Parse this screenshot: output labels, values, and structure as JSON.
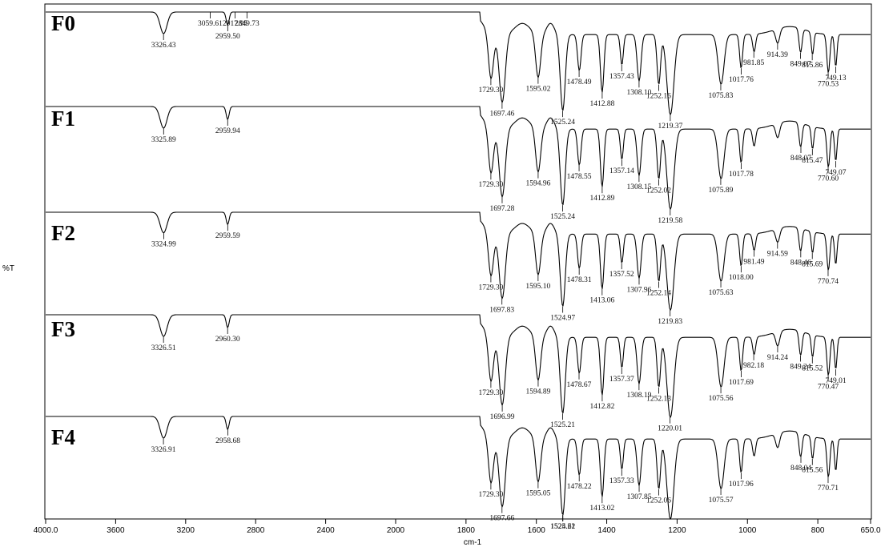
{
  "chart_data": {
    "type": "line",
    "title": "",
    "xlabel": "cm-1",
    "ylabel": "%T",
    "xlim": [
      4000.0,
      650.0
    ],
    "x_ticks": [
      4000.0,
      3600,
      3200,
      2800,
      2400,
      2000,
      1800,
      1600,
      1400,
      1200,
      1000,
      800,
      650.0
    ],
    "x_tick_labels": [
      "4000.0",
      "3600",
      "3200",
      "2800",
      "2400",
      "2000",
      "1800",
      "1600",
      "1400",
      "1200",
      "1000",
      "800",
      "650.0"
    ],
    "grid": false,
    "legend": "none",
    "series": [
      {
        "name": "F0",
        "peaks": [
          {
            "wn": 3326.43,
            "label": "3326.43"
          },
          {
            "wn": 3059.61,
            "label": "3059.61"
          },
          {
            "wn": 2959.5,
            "label": "2959.50"
          },
          {
            "wn": 2917.95,
            "label": "2917.95"
          },
          {
            "wn": 2849.73,
            "label": "2849.73"
          },
          {
            "wn": 1729.3,
            "label": "1729.30"
          },
          {
            "wn": 1697.46,
            "label": "1697.46"
          },
          {
            "wn": 1595.02,
            "label": "1595.02"
          },
          {
            "wn": 1525.24,
            "label": "1525.24"
          },
          {
            "wn": 1478.49,
            "label": "1478.49"
          },
          {
            "wn": 1412.88,
            "label": "1412.88"
          },
          {
            "wn": 1357.43,
            "label": "1357.43"
          },
          {
            "wn": 1308.1,
            "label": "1308.10"
          },
          {
            "wn": 1252.16,
            "label": "1252.16"
          },
          {
            "wn": 1219.37,
            "label": "1219.37"
          },
          {
            "wn": 1075.83,
            "label": "1075.83"
          },
          {
            "wn": 1017.76,
            "label": "1017.76"
          },
          {
            "wn": 981.85,
            "label": "981.85"
          },
          {
            "wn": 914.39,
            "label": "914.39"
          },
          {
            "wn": 849.07,
            "label": "849.07"
          },
          {
            "wn": 815.86,
            "label": "815.86"
          },
          {
            "wn": 770.53,
            "label": "770.53"
          },
          {
            "wn": 749.13,
            "label": "749.13"
          }
        ]
      },
      {
        "name": "F1",
        "peaks": [
          {
            "wn": 3325.89,
            "label": "3325.89"
          },
          {
            "wn": 2959.94,
            "label": "2959.94"
          },
          {
            "wn": 1729.3,
            "label": "1729.30"
          },
          {
            "wn": 1697.28,
            "label": "1697.28"
          },
          {
            "wn": 1594.96,
            "label": "1594.96"
          },
          {
            "wn": 1525.24,
            "label": "1525.24"
          },
          {
            "wn": 1478.55,
            "label": "1478.55"
          },
          {
            "wn": 1412.89,
            "label": "1412.89"
          },
          {
            "wn": 1357.14,
            "label": "1357.14"
          },
          {
            "wn": 1308.15,
            "label": "1308.15"
          },
          {
            "wn": 1252.02,
            "label": "1252.02"
          },
          {
            "wn": 1219.58,
            "label": "1219.58"
          },
          {
            "wn": 1075.89,
            "label": "1075.89"
          },
          {
            "wn": 1017.78,
            "label": "1017.78"
          },
          {
            "wn": 848.07,
            "label": "848.07"
          },
          {
            "wn": 815.47,
            "label": "815.47"
          },
          {
            "wn": 770.6,
            "label": "770.60"
          },
          {
            "wn": 749.07,
            "label": "749.07"
          }
        ]
      },
      {
        "name": "F2",
        "peaks": [
          {
            "wn": 3324.99,
            "label": "3324.99"
          },
          {
            "wn": 2959.59,
            "label": "2959.59"
          },
          {
            "wn": 1729.3,
            "label": "1729.30"
          },
          {
            "wn": 1697.83,
            "label": "1697.83"
          },
          {
            "wn": 1595.1,
            "label": "1595.10"
          },
          {
            "wn": 1524.97,
            "label": "1524.97"
          },
          {
            "wn": 1478.31,
            "label": "1478.31"
          },
          {
            "wn": 1413.06,
            "label": "1413.06"
          },
          {
            "wn": 1357.52,
            "label": "1357.52"
          },
          {
            "wn": 1307.96,
            "label": "1307.96"
          },
          {
            "wn": 1252.14,
            "label": "1252.14"
          },
          {
            "wn": 1219.83,
            "label": "1219.83"
          },
          {
            "wn": 1075.63,
            "label": "1075.63"
          },
          {
            "wn": 1018.0,
            "label": "1018.00"
          },
          {
            "wn": 981.49,
            "label": "981.49"
          },
          {
            "wn": 914.59,
            "label": "914.59"
          },
          {
            "wn": 848.46,
            "label": "848.46"
          },
          {
            "wn": 815.69,
            "label": "815.69"
          },
          {
            "wn": 770.74,
            "label": "770.74"
          }
        ]
      },
      {
        "name": "F3",
        "peaks": [
          {
            "wn": 3326.51,
            "label": "3326.51"
          },
          {
            "wn": 2960.3,
            "label": "2960.30"
          },
          {
            "wn": 1729.3,
            "label": "1729.30"
          },
          {
            "wn": 1696.99,
            "label": "1696.99"
          },
          {
            "wn": 1594.89,
            "label": "1594.89"
          },
          {
            "wn": 1525.21,
            "label": "1525.21"
          },
          {
            "wn": 1478.67,
            "label": "1478.67"
          },
          {
            "wn": 1412.82,
            "label": "1412.82"
          },
          {
            "wn": 1357.37,
            "label": "1357.37"
          },
          {
            "wn": 1308.19,
            "label": "1308.19"
          },
          {
            "wn": 1252.13,
            "label": "1252.13"
          },
          {
            "wn": 1220.01,
            "label": "1220.01"
          },
          {
            "wn": 1075.56,
            "label": "1075.56"
          },
          {
            "wn": 1017.69,
            "label": "1017.69"
          },
          {
            "wn": 982.18,
            "label": "982.18"
          },
          {
            "wn": 914.24,
            "label": "914.24"
          },
          {
            "wn": 849.24,
            "label": "849.24"
          },
          {
            "wn": 815.52,
            "label": "815.52"
          },
          {
            "wn": 770.47,
            "label": "770.47"
          },
          {
            "wn": 749.01,
            "label": "749.01"
          }
        ]
      },
      {
        "name": "F4",
        "peaks": [
          {
            "wn": 3326.91,
            "label": "3326.91"
          },
          {
            "wn": 2958.68,
            "label": "2958.68"
          },
          {
            "wn": 1729.3,
            "label": "1729.30"
          },
          {
            "wn": 1697.66,
            "label": "1697.66"
          },
          {
            "wn": 1595.05,
            "label": "1595.05"
          },
          {
            "wn": 1525.21,
            "label": "1525.21"
          },
          {
            "wn": 1524.62,
            "label": "1524.62"
          },
          {
            "wn": 1478.22,
            "label": "1478.22"
          },
          {
            "wn": 1413.02,
            "label": "1413.02"
          },
          {
            "wn": 1357.33,
            "label": "1357.33"
          },
          {
            "wn": 1307.85,
            "label": "1307.85"
          },
          {
            "wn": 1252.06,
            "label": "1252.06"
          },
          {
            "wn": 1075.57,
            "label": "1075.57"
          },
          {
            "wn": 1017.96,
            "label": "1017.96"
          },
          {
            "wn": 848.04,
            "label": "848.04"
          },
          {
            "wn": 815.56,
            "label": "815.56"
          },
          {
            "wn": 770.71,
            "label": "770.71"
          }
        ]
      }
    ]
  }
}
